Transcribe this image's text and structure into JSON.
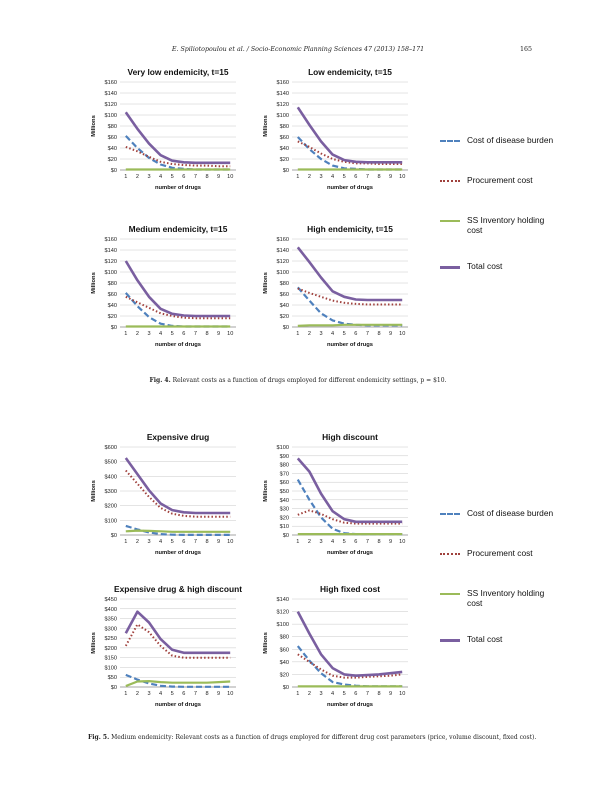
{
  "header": {
    "text": "E. Spiliotopoulou et al. / Socio-Economic Planning Sciences 47 (2013) 158–171",
    "page": "165"
  },
  "colors": {
    "disease": "#4f81bd",
    "procurement": "#a0413d",
    "inventory": "#9bbb59",
    "total": "#7a5fa0"
  },
  "legend": {
    "items": [
      {
        "label": "Cost of disease burden",
        "style": "dash",
        "color": "#4f81bd"
      },
      {
        "label": "Procurement cost",
        "style": "dot",
        "color": "#a0413d"
      },
      {
        "label": "SS Inventory holding cost",
        "style": "solid-thin",
        "color": "#9bbb59"
      },
      {
        "label": "Total cost",
        "style": "solid",
        "color": "#7a5fa0"
      }
    ]
  },
  "captions": {
    "fig4_label": "Fig. 4.",
    "fig4_text": "Relevant costs as a function of drugs employed for different endemicity settings, p = $10.",
    "fig5_label": "Fig. 5.",
    "fig5_text": "Medium endemicity: Relevant costs as a function of drugs employed for different drug cost parameters (price, volume discount, fixed cost)."
  },
  "chart_data": [
    {
      "type": "line",
      "title": "Very low endemicity, t=15",
      "xlabel": "number of drugs",
      "ylabel": "Millions",
      "x": [
        1,
        2,
        3,
        4,
        5,
        6,
        7,
        8,
        9,
        10
      ],
      "ylim": [
        0,
        160
      ],
      "yticks": [
        "$0",
        "$20",
        "$40",
        "$60",
        "$80",
        "$100",
        "$120",
        "$140",
        "$160"
      ],
      "series": [
        {
          "name": "Cost of disease burden",
          "values": [
            62,
            40,
            22,
            10,
            4,
            2,
            1,
            1,
            1,
            1
          ]
        },
        {
          "name": "Procurement cost",
          "values": [
            42,
            34,
            24,
            15,
            11,
            9,
            8,
            8,
            7,
            7
          ]
        },
        {
          "name": "SS Inventory holding cost",
          "values": [
            1,
            1,
            1,
            1,
            1,
            1,
            1,
            1,
            1,
            1
          ]
        },
        {
          "name": "Total cost",
          "values": [
            105,
            75,
            48,
            27,
            17,
            14,
            13,
            13,
            13,
            13
          ]
        }
      ]
    },
    {
      "type": "line",
      "title": "Low endemicity, t=15",
      "xlabel": "number of drugs",
      "ylabel": "Millions",
      "x": [
        1,
        2,
        3,
        4,
        5,
        6,
        7,
        8,
        9,
        10
      ],
      "ylim": [
        0,
        160
      ],
      "yticks": [
        "$0",
        "$20",
        "$40",
        "$60",
        "$80",
        "$100",
        "$120",
        "$140",
        "$160"
      ],
      "series": [
        {
          "name": "Cost of disease burden",
          "values": [
            60,
            38,
            20,
            8,
            3,
            2,
            1,
            1,
            1,
            1
          ]
        },
        {
          "name": "Procurement cost",
          "values": [
            52,
            42,
            30,
            20,
            15,
            12,
            12,
            11,
            11,
            11
          ]
        },
        {
          "name": "SS Inventory holding cost",
          "values": [
            1,
            1,
            1,
            1,
            1,
            1,
            1,
            1,
            1,
            1
          ]
        },
        {
          "name": "Total cost",
          "values": [
            114,
            82,
            52,
            28,
            18,
            15,
            14,
            14,
            14,
            14
          ]
        }
      ]
    },
    {
      "type": "line",
      "title": "Medium endemicity, t=15",
      "xlabel": "number of drugs",
      "ylabel": "Millions",
      "x": [
        1,
        2,
        3,
        4,
        5,
        6,
        7,
        8,
        9,
        10
      ],
      "ylim": [
        0,
        160
      ],
      "yticks": [
        "$0",
        "$20",
        "$40",
        "$60",
        "$80",
        "$100",
        "$120",
        "$140",
        "$160"
      ],
      "series": [
        {
          "name": "Cost of disease burden",
          "values": [
            62,
            38,
            18,
            6,
            2,
            1,
            1,
            1,
            1,
            1
          ]
        },
        {
          "name": "Procurement cost",
          "values": [
            55,
            45,
            35,
            25,
            20,
            17,
            16,
            16,
            16,
            16
          ]
        },
        {
          "name": "SS Inventory holding cost",
          "values": [
            1,
            1,
            1,
            1,
            1,
            1,
            1,
            1,
            1,
            1
          ]
        },
        {
          "name": "Total cost",
          "values": [
            120,
            85,
            55,
            33,
            24,
            21,
            20,
            20,
            20,
            20
          ]
        }
      ]
    },
    {
      "type": "line",
      "title": "High endemicity, t=15",
      "xlabel": "number of drugs",
      "ylabel": "Millions",
      "x": [
        1,
        2,
        3,
        4,
        5,
        6,
        7,
        8,
        9,
        10
      ],
      "ylim": [
        0,
        160
      ],
      "yticks": [
        "$0",
        "$20",
        "$40",
        "$60",
        "$80",
        "$100",
        "$120",
        "$140",
        "$160"
      ],
      "series": [
        {
          "name": "Cost of disease burden",
          "values": [
            72,
            48,
            25,
            12,
            6,
            4,
            3,
            3,
            3,
            3
          ]
        },
        {
          "name": "Procurement cost",
          "values": [
            70,
            62,
            55,
            48,
            44,
            42,
            41,
            41,
            41,
            41
          ]
        },
        {
          "name": "SS Inventory holding cost",
          "values": [
            2,
            3,
            3,
            3,
            4,
            4,
            4,
            4,
            4,
            4
          ]
        },
        {
          "name": "Total cost",
          "values": [
            145,
            118,
            90,
            65,
            55,
            50,
            49,
            49,
            49,
            49
          ]
        }
      ]
    },
    {
      "type": "line",
      "title": "Expensive drug",
      "xlabel": "number of drugs",
      "ylabel": "Millions",
      "x": [
        1,
        2,
        3,
        4,
        5,
        6,
        7,
        8,
        9,
        10
      ],
      "ylim": [
        0,
        600
      ],
      "yticks": [
        "$0",
        "$100",
        "$200",
        "$300",
        "$400",
        "$500",
        "$600"
      ],
      "series": [
        {
          "name": "Cost of disease burden",
          "values": [
            62,
            38,
            18,
            6,
            2,
            1,
            1,
            1,
            1,
            1
          ]
        },
        {
          "name": "Procurement cost",
          "values": [
            440,
            350,
            260,
            185,
            145,
            130,
            125,
            125,
            125,
            125
          ]
        },
        {
          "name": "SS Inventory holding cost",
          "values": [
            25,
            30,
            28,
            25,
            22,
            22,
            22,
            22,
            22,
            22
          ]
        },
        {
          "name": "Total cost",
          "values": [
            525,
            415,
            305,
            215,
            170,
            155,
            150,
            150,
            150,
            150
          ]
        }
      ]
    },
    {
      "type": "line",
      "title": "High discount",
      "xlabel": "number of drugs",
      "ylabel": "Millions",
      "x": [
        1,
        2,
        3,
        4,
        5,
        6,
        7,
        8,
        9,
        10
      ],
      "ylim": [
        0,
        100
      ],
      "yticks": [
        "$0",
        "$10",
        "$20",
        "$30",
        "$40",
        "$50",
        "$60",
        "$70",
        "$80",
        "$90",
        "$100"
      ],
      "series": [
        {
          "name": "Cost of disease burden",
          "values": [
            63,
            40,
            20,
            7,
            2,
            1,
            1,
            1,
            1,
            1
          ]
        },
        {
          "name": "Procurement cost",
          "values": [
            23,
            28,
            24,
            18,
            14,
            13,
            13,
            13,
            13,
            13
          ]
        },
        {
          "name": "SS Inventory holding cost",
          "values": [
            1,
            1,
            1,
            1,
            1,
            1,
            1,
            1,
            1,
            1
          ]
        },
        {
          "name": "Total cost",
          "values": [
            87,
            72,
            47,
            27,
            18,
            15,
            15,
            15,
            15,
            15
          ]
        }
      ]
    },
    {
      "type": "line",
      "title": "Expensive drug & high discount",
      "xlabel": "number of drugs",
      "ylabel": "Millions",
      "x": [
        1,
        2,
        3,
        4,
        5,
        6,
        7,
        8,
        9,
        10
      ],
      "ylim": [
        0,
        450
      ],
      "yticks": [
        "$0",
        "$50",
        "$100",
        "$150",
        "$200",
        "$250",
        "$300",
        "$350",
        "$400",
        "$450"
      ],
      "series": [
        {
          "name": "Cost of disease burden",
          "values": [
            62,
            38,
            18,
            6,
            2,
            1,
            1,
            1,
            1,
            1
          ]
        },
        {
          "name": "Procurement cost",
          "values": [
            210,
            320,
            280,
            210,
            160,
            150,
            150,
            150,
            150,
            150
          ]
        },
        {
          "name": "SS Inventory holding cost",
          "values": [
            5,
            28,
            30,
            25,
            22,
            22,
            22,
            22,
            25,
            28
          ]
        },
        {
          "name": "Total cost",
          "values": [
            275,
            385,
            330,
            245,
            190,
            175,
            175,
            175,
            175,
            175
          ]
        }
      ]
    },
    {
      "type": "line",
      "title": "High fixed cost",
      "xlabel": "number of drugs",
      "ylabel": "Millions",
      "x": [
        1,
        2,
        3,
        4,
        5,
        6,
        7,
        8,
        9,
        10
      ],
      "ylim": [
        0,
        140
      ],
      "yticks": [
        "$0",
        "$20",
        "$40",
        "$60",
        "$80",
        "$100",
        "$120",
        "$140"
      ],
      "series": [
        {
          "name": "Cost of disease burden",
          "values": [
            65,
            42,
            22,
            8,
            4,
            2,
            1,
            1,
            1,
            1
          ]
        },
        {
          "name": "Procurement cost",
          "values": [
            52,
            40,
            28,
            18,
            15,
            15,
            16,
            17,
            18,
            20
          ]
        },
        {
          "name": "SS Inventory holding cost",
          "values": [
            1,
            1,
            1,
            1,
            1,
            1,
            1,
            1,
            1,
            1
          ]
        },
        {
          "name": "Total cost",
          "values": [
            120,
            85,
            52,
            30,
            20,
            18,
            19,
            20,
            22,
            24
          ]
        }
      ]
    }
  ]
}
